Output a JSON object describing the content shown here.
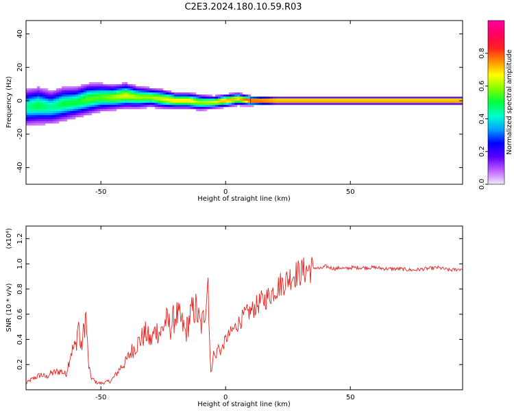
{
  "figure_title": "C2E3.2024.180.10.59.R03",
  "chart_data": [
    {
      "type": "heatmap",
      "xlabel": "Height of straight line (km)",
      "ylabel": "Frequency (Hz)",
      "xlim": [
        -80,
        95
      ],
      "ylim": [
        -50,
        48
      ],
      "x_ticks": [
        -50,
        0,
        50
      ],
      "y_ticks": [
        -40,
        -20,
        0,
        20,
        40
      ],
      "grid": false,
      "colorbar": {
        "label": "Normalized spectral amplitude",
        "range": [
          0,
          1
        ],
        "ticks": [
          "0.0",
          "0.2",
          "0.4",
          "0.6",
          "0.8"
        ],
        "tick_values": [
          0.0,
          0.2,
          0.4,
          0.6,
          0.8
        ],
        "colors": [
          "#f0eaff",
          "#c060ff",
          "#5a00ff",
          "#0000ff",
          "#00a0ff",
          "#00ffd0",
          "#00ff40",
          "#80ff00",
          "#ffff00",
          "#ff9000",
          "#ff2020",
          "#ff0060",
          "#ff00a0"
        ]
      },
      "ridge": {
        "x": [
          -80,
          -75,
          -70,
          -65,
          -60,
          -55,
          -50,
          -45,
          -40,
          -35,
          -30,
          -25,
          -20,
          -15,
          -10,
          -5,
          0,
          5,
          10,
          20,
          40,
          60,
          95
        ],
        "frequency": [
          -4,
          -3,
          -4,
          -2,
          -1,
          1,
          2,
          2,
          3,
          2,
          2,
          1,
          0,
          0,
          -1,
          -1,
          0,
          1,
          0,
          0,
          0,
          0,
          0
        ],
        "amplitude": [
          0.45,
          0.5,
          0.45,
          0.5,
          0.5,
          0.55,
          0.55,
          0.6,
          0.65,
          0.6,
          0.6,
          0.65,
          0.7,
          0.7,
          0.6,
          0.65,
          0.75,
          0.7,
          0.85,
          0.9,
          0.9,
          0.9,
          0.9
        ]
      },
      "spread_hz": [
        12,
        12,
        11,
        11,
        10,
        10,
        9,
        8,
        8,
        7,
        6,
        6,
        5,
        5,
        5,
        4,
        4,
        4,
        3,
        2,
        2,
        2,
        2
      ]
    },
    {
      "type": "line",
      "xlabel": "Height of straight line (km)",
      "ylabel": "SNR (10 * v/v)",
      "y_multiplier": "(x10⁴)",
      "xlim": [
        -80,
        95
      ],
      "ylim": [
        0,
        1.3
      ],
      "x_ticks": [
        -50,
        0,
        50
      ],
      "y_ticks": [
        0.2,
        0.4,
        0.6,
        0.8,
        1.0,
        1.2
      ],
      "y_tick_labels": [
        "0.2",
        "0.4",
        "0.6",
        "0.8",
        "1.0",
        "1.2"
      ],
      "grid": false,
      "series": [
        {
          "color": "#e8201c",
          "x": [
            -80,
            -78,
            -76,
            -74,
            -72,
            -70,
            -68,
            -66,
            -64,
            -62,
            -60,
            -59,
            -58,
            -57,
            -56,
            -55,
            -54,
            -52,
            -50,
            -48,
            -46,
            -44,
            -42,
            -40,
            -38,
            -36,
            -34,
            -32,
            -30,
            -28,
            -26,
            -24,
            -22,
            -20,
            -18,
            -16,
            -14,
            -12,
            -10,
            -9,
            -8,
            -7,
            -6,
            -5,
            -4,
            -3,
            -2,
            0,
            2,
            4,
            6,
            8,
            10,
            12,
            14,
            16,
            18,
            20,
            22,
            24,
            26,
            28,
            30,
            32,
            34,
            36,
            38,
            40,
            42,
            44,
            46,
            48,
            50,
            55,
            60,
            65,
            70,
            75,
            80,
            85,
            90,
            95
          ],
          "y": [
            0.05,
            0.08,
            0.1,
            0.12,
            0.1,
            0.13,
            0.14,
            0.15,
            0.12,
            0.3,
            0.35,
            0.55,
            0.3,
            0.45,
            0.6,
            0.2,
            0.1,
            0.06,
            0.05,
            0.06,
            0.07,
            0.12,
            0.18,
            0.22,
            0.3,
            0.35,
            0.4,
            0.45,
            0.38,
            0.48,
            0.45,
            0.55,
            0.5,
            0.6,
            0.55,
            0.45,
            0.6,
            0.65,
            0.5,
            0.55,
            0.7,
            0.9,
            0.1,
            0.3,
            0.25,
            0.35,
            0.3,
            0.4,
            0.45,
            0.5,
            0.55,
            0.6,
            0.62,
            0.66,
            0.7,
            0.72,
            0.76,
            0.8,
            0.84,
            0.86,
            0.9,
            0.92,
            0.93,
            0.95,
            0.96,
            0.97,
            0.96,
            0.98,
            0.97,
            0.96,
            0.97,
            0.96,
            0.97,
            0.97,
            0.97,
            0.96,
            0.96,
            0.95,
            0.96,
            0.97,
            0.95,
            0.96
          ]
        }
      ]
    }
  ]
}
